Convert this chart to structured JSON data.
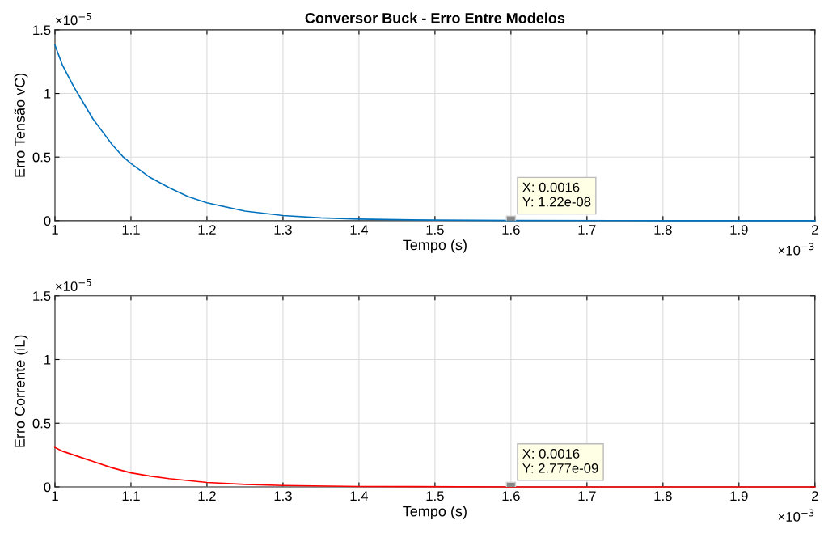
{
  "chart_data": [
    {
      "type": "line",
      "title": "Conversor Buck - Erro Entre Modelos",
      "xlabel": "Tempo (s)",
      "ylabel": "Erro Tensão vC)",
      "x": [
        1.0,
        1.01,
        1.025,
        1.04,
        1.05,
        1.065,
        1.075,
        1.09,
        1.1,
        1.125,
        1.15,
        1.175,
        1.2,
        1.25,
        1.3,
        1.35,
        1.4,
        1.5,
        1.6,
        1.8,
        2.0
      ],
      "series": [
        {
          "color": "#0072bd",
          "values": [
            1.38,
            1.22,
            1.05,
            0.9,
            0.8,
            0.68,
            0.6,
            0.5,
            0.45,
            0.34,
            0.26,
            0.19,
            0.14,
            0.075,
            0.04,
            0.022,
            0.012,
            0.004,
            0.001,
            0.0,
            0.0
          ]
        }
      ],
      "xlim": [
        1,
        2
      ],
      "xticks": [
        1,
        1.1,
        1.2,
        1.3,
        1.4,
        1.5,
        1.6,
        1.7,
        1.8,
        1.9,
        2
      ],
      "ylim": [
        0,
        1.5
      ],
      "yticks": [
        0,
        0.5,
        1,
        1.5
      ],
      "grid": true,
      "annotations": [
        "×10$^{−5}$",
        "×10$^{−3}$",
        {
          "text": "X: 0.0016\nY: 1.22e-08",
          "x": 1.6,
          "y": 0.00122
        }
      ]
    },
    {
      "type": "line",
      "xlabel": "Tempo (s)",
      "ylabel": "Erro Corrente (iL)",
      "x": [
        1.0,
        1.01,
        1.025,
        1.04,
        1.05,
        1.075,
        1.1,
        1.125,
        1.15,
        1.2,
        1.25,
        1.3,
        1.4,
        1.6,
        1.8,
        2.0
      ],
      "series": [
        {
          "color": "#ff0000",
          "values": [
            0.31,
            0.28,
            0.25,
            0.22,
            0.2,
            0.15,
            0.11,
            0.085,
            0.065,
            0.035,
            0.02,
            0.011,
            0.003,
            0.0,
            0.0,
            0.0
          ]
        }
      ],
      "xlim": [
        1,
        2
      ],
      "xticks": [
        1,
        1.1,
        1.2,
        1.3,
        1.4,
        1.5,
        1.6,
        1.7,
        1.8,
        1.9,
        2
      ],
      "ylim": [
        0,
        1.5
      ],
      "yticks": [
        0,
        0.5,
        1,
        1.5
      ],
      "grid": true,
      "annotations": [
        "×10$^{−5}$",
        "×10$^{−3}$",
        {
          "text": "X: 0.0016\nY: 2.777e-09",
          "x": 1.6,
          "y": 0.0002777
        }
      ]
    }
  ]
}
